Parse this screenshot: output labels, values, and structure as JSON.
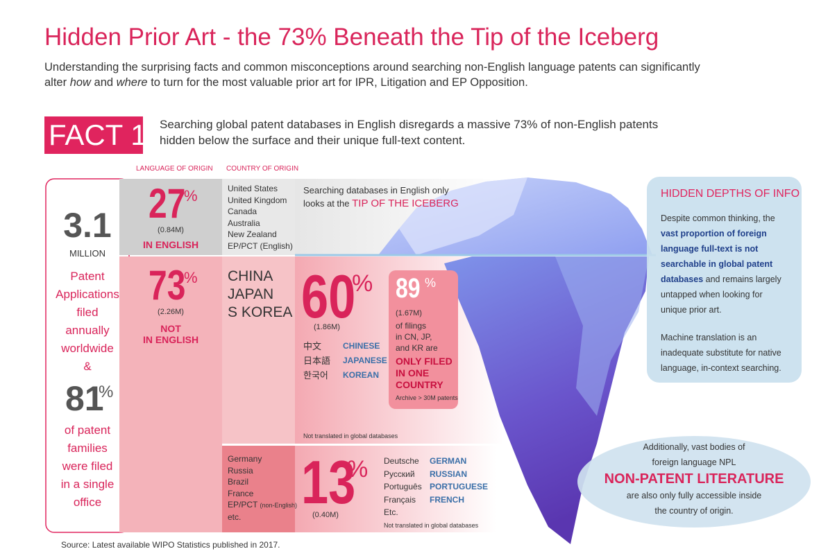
{
  "header": {
    "title": "Hidden Prior Art - the 73% Beneath the Tip of the Iceberg",
    "subtitle": [
      "Understanding the surprising facts and common misconceptions around searching non-English language patents can significantly",
      "alter ",
      "how",
      " and ",
      "where",
      " to turn for the most valuable prior art for IPR, Litigation and EP Opposition."
    ]
  },
  "fact": {
    "label": "FACT 1:",
    "text": [
      "Searching global patent databases in English disregards a massive 73% of non-English patents",
      "hidden below the surface and their unique full-text content."
    ]
  },
  "columns": {
    "language": "LANGUAGE OF ORIGIN",
    "country": "COUNTRY OF ORIGIN"
  },
  "left_panel": {
    "total": "3.1",
    "total_unit": "MILLION",
    "total_text": [
      "Patent",
      "Applications",
      "filed",
      "annually",
      "worldwide",
      "&"
    ],
    "share": "81",
    "share_unit": "%",
    "share_text": [
      "of patent",
      "families",
      "were filed",
      "in a single",
      "office"
    ]
  },
  "english": {
    "percent": "27",
    "unit": "%",
    "count": "(0.84M)",
    "label": "IN ENGLISH",
    "countries": [
      "United States",
      "United Kingdom",
      "Canada",
      "Australia",
      "New Zealand",
      "EP/PCT (English)"
    ],
    "tip": [
      "Searching databases in English only",
      "looks at the ",
      "TIP OF THE ICEBERG"
    ]
  },
  "non_english": {
    "percent": "73",
    "unit": "%",
    "count": "(2.26M)",
    "label": [
      "NOT",
      "IN ENGLISH"
    ]
  },
  "asia": {
    "countries": [
      "CHINA",
      "JAPAN",
      "S KOREA"
    ],
    "percent": "60",
    "unit": "%",
    "count": "(1.86M)",
    "languages": [
      [
        "中文",
        "CHINESE"
      ],
      [
        "日本語",
        "JAPANESE"
      ],
      [
        "한국어",
        "KOREAN"
      ]
    ],
    "single": {
      "percent": "89",
      "unit": "%",
      "count": "(1.67M)",
      "text": [
        "of filings",
        "in CN, JP,",
        "and KR are"
      ],
      "highlight": [
        "ONLY FILED",
        "IN ONE",
        "COUNTRY"
      ],
      "note": "Archive > 30M patents"
    },
    "note": "Not translated in global databases"
  },
  "europe": {
    "countries": [
      "Germany",
      "Russia",
      "Brazil",
      "France",
      "EP/PCT ",
      "(non-English)",
      "etc."
    ],
    "percent": "13",
    "unit": "%",
    "count": "(0.40M)",
    "languages": [
      [
        "Deutsche",
        "GERMAN"
      ],
      [
        "Русский",
        "RUSSIAN"
      ],
      [
        "Português",
        "PORTUGUESE"
      ],
      [
        "Français",
        "FRENCH"
      ]
    ],
    "etc": "Etc.",
    "note": "Not translated in global databases"
  },
  "hidden_depths": {
    "title": "HIDDEN DEPTHS OF INFO",
    "paragraph_1": [
      "Despite common thinking, the",
      "vast proportion of foreign",
      "language full-text is not",
      "searchable in global patent",
      "databases",
      " and remains largely",
      "untapped when looking for",
      "unique prior art."
    ],
    "paragraph_2": [
      "Machine translation is an",
      "inadequate substitute for native",
      "language, in-context searching."
    ]
  },
  "npl": {
    "text": [
      "Additionally, vast bodies of",
      "foreign language NPL",
      "NON-PATENT LITERATURE",
      "are also only fully accessible inside",
      "the country of origin."
    ]
  },
  "source": "Source: Latest available WIPO Statistics published in 2017."
}
